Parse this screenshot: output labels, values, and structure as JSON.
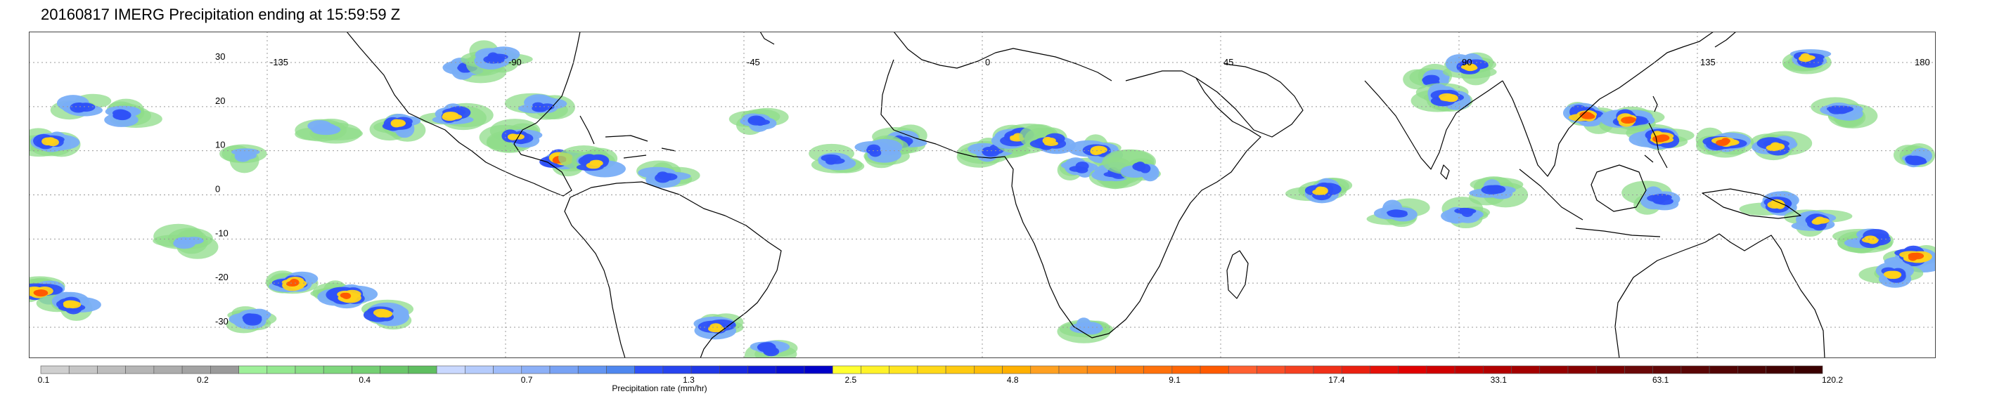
{
  "title": "20160817 IMERG Precipitation ending at 15:59:59 Z",
  "map": {
    "projection": "equirectangular",
    "lon_range": [
      -180,
      180
    ],
    "lat_range": [
      -37,
      37
    ],
    "lon_ticks": [
      {
        "value": -135,
        "label": "-135"
      },
      {
        "value": -90,
        "label": "-90"
      },
      {
        "value": -45,
        "label": "-45"
      },
      {
        "value": 0,
        "label": "0"
      },
      {
        "value": 45,
        "label": "45"
      },
      {
        "value": 90,
        "label": "90"
      },
      {
        "value": 135,
        "label": "135"
      },
      {
        "value": 180,
        "label": "180"
      }
    ],
    "lat_ticks": [
      {
        "value": 30,
        "label": "30"
      },
      {
        "value": 20,
        "label": "20"
      },
      {
        "value": 10,
        "label": "10"
      },
      {
        "value": 0,
        "label": "0"
      },
      {
        "value": -10,
        "label": "-10"
      },
      {
        "value": -20,
        "label": "-20"
      },
      {
        "value": -30,
        "label": "-30"
      }
    ],
    "gridlines": "dotted"
  },
  "colorbar": {
    "caption": "Precipitation rate (mm/hr)",
    "tick_labels": [
      "0.1",
      "0.2",
      "0.4",
      "0.7",
      "1.3",
      "2.5",
      "4.8",
      "9.1",
      "17.4",
      "33.1",
      "63.1",
      "120.2"
    ],
    "groups": [
      {
        "from": "#cfcfcf",
        "to": "#9a9a9a"
      },
      {
        "from": "#9ff09a",
        "to": "#5fbe60"
      },
      {
        "from": "#c9d8ff",
        "to": "#4f87ef"
      },
      {
        "from": "#2f52f7",
        "to": "#0000c8"
      },
      {
        "from": "#ffff30",
        "to": "#ffb000"
      },
      {
        "from": "#ffa020",
        "to": "#ff5a00"
      },
      {
        "from": "#ff6030",
        "to": "#e00000"
      },
      {
        "from": "#d00000",
        "to": "#780000"
      },
      {
        "from": "#6a0808",
        "to": "#3a0000"
      }
    ]
  },
  "precip_cells": [
    {
      "lon": -178,
      "lat": -22,
      "intensity": 4
    },
    {
      "lon": -172,
      "lat": -25,
      "intensity": 3
    },
    {
      "lon": -176,
      "lat": 12,
      "intensity": 3
    },
    {
      "lon": -170,
      "lat": 20,
      "intensity": 2
    },
    {
      "lon": -162,
      "lat": 18,
      "intensity": 2
    },
    {
      "lon": -150,
      "lat": -11,
      "intensity": 1
    },
    {
      "lon": -130,
      "lat": -20,
      "intensity": 4
    },
    {
      "lon": -120,
      "lat": -23,
      "intensity": 4
    },
    {
      "lon": -113,
      "lat": -27,
      "intensity": 3
    },
    {
      "lon": -138,
      "lat": -28,
      "intensity": 2
    },
    {
      "lon": -110,
      "lat": 16,
      "intensity": 3
    },
    {
      "lon": -100,
      "lat": 18,
      "intensity": 3
    },
    {
      "lon": -97,
      "lat": 29,
      "intensity": 2
    },
    {
      "lon": -92,
      "lat": 31,
      "intensity": 2
    },
    {
      "lon": -88,
      "lat": 13,
      "intensity": 3
    },
    {
      "lon": -80,
      "lat": 8,
      "intensity": 4
    },
    {
      "lon": -83,
      "lat": 20,
      "intensity": 2
    },
    {
      "lon": -73,
      "lat": 7,
      "intensity": 3
    },
    {
      "lon": -60,
      "lat": 4,
      "intensity": 2
    },
    {
      "lon": -50,
      "lat": -30,
      "intensity": 3
    },
    {
      "lon": -42,
      "lat": 17,
      "intensity": 2
    },
    {
      "lon": -40,
      "lat": -35,
      "intensity": 2
    },
    {
      "lon": -28,
      "lat": 8,
      "intensity": 2
    },
    {
      "lon": -15,
      "lat": 12,
      "intensity": 2
    },
    {
      "lon": -20,
      "lat": 10,
      "intensity": 2
    },
    {
      "lon": 2,
      "lat": 10,
      "intensity": 2
    },
    {
      "lon": 7,
      "lat": 13,
      "intensity": 3
    },
    {
      "lon": 13,
      "lat": 12,
      "intensity": 3
    },
    {
      "lon": 18,
      "lat": 6,
      "intensity": 2
    },
    {
      "lon": 22,
      "lat": 10,
      "intensity": 3
    },
    {
      "lon": 25,
      "lat": 5,
      "intensity": 2
    },
    {
      "lon": 30,
      "lat": 6,
      "intensity": 2
    },
    {
      "lon": 20,
      "lat": -30,
      "intensity": 1
    },
    {
      "lon": 64,
      "lat": 1,
      "intensity": 3
    },
    {
      "lon": 78,
      "lat": -4,
      "intensity": 2
    },
    {
      "lon": 84,
      "lat": 26,
      "intensity": 2
    },
    {
      "lon": 88,
      "lat": 22,
      "intensity": 3
    },
    {
      "lon": 92,
      "lat": 29,
      "intensity": 3
    },
    {
      "lon": 91,
      "lat": -4,
      "intensity": 2
    },
    {
      "lon": 97,
      "lat": 1,
      "intensity": 2
    },
    {
      "lon": 114,
      "lat": 18,
      "intensity": 4
    },
    {
      "lon": 122,
      "lat": 17,
      "intensity": 4
    },
    {
      "lon": 128,
      "lat": 13,
      "intensity": 4
    },
    {
      "lon": 140,
      "lat": 12,
      "intensity": 4
    },
    {
      "lon": 150,
      "lat": 11,
      "intensity": 3
    },
    {
      "lon": 156,
      "lat": 31,
      "intensity": 3
    },
    {
      "lon": 162,
      "lat": 19,
      "intensity": 2
    },
    {
      "lon": 150,
      "lat": -2,
      "intensity": 3
    },
    {
      "lon": 158,
      "lat": -6,
      "intensity": 3
    },
    {
      "lon": 168,
      "lat": -10,
      "intensity": 3
    },
    {
      "lon": 176,
      "lat": -14,
      "intensity": 4
    },
    {
      "lon": 172,
      "lat": -18,
      "intensity": 3
    },
    {
      "lon": 176,
      "lat": 8,
      "intensity": 2
    },
    {
      "lon": 128,
      "lat": -1,
      "intensity": 2
    },
    {
      "lon": -124,
      "lat": 15,
      "intensity": 1
    },
    {
      "lon": -140,
      "lat": 9,
      "intensity": 1
    }
  ]
}
